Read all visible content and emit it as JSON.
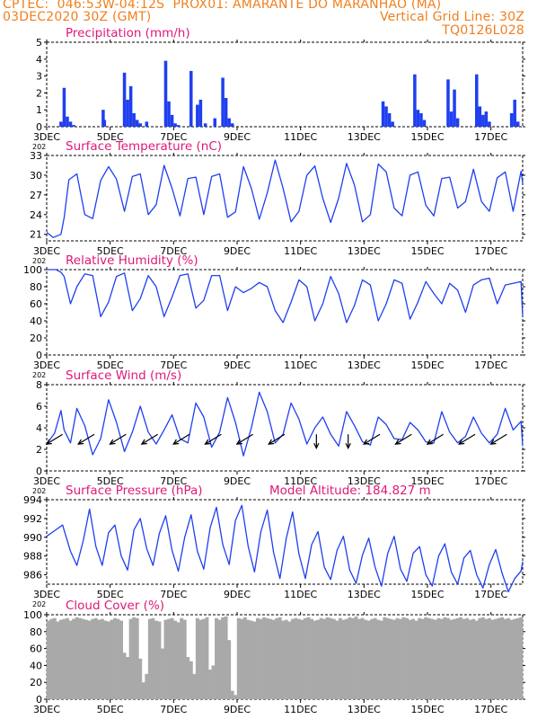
{
  "header": {
    "line1_left": "CPTEC:  046:53W-04:12S  PROX01: AMARANTE DO MARANHAO (MA)",
    "line2_left": "03DEC2020 30Z (GMT)",
    "line2_right": "Vertical Grid Line: 30Z",
    "line3_right": "TQ0126L028"
  },
  "colors": {
    "header": "#f07f1e",
    "title": "#e0187a",
    "line": "#1f3ff0",
    "bar": "#1f3ff0",
    "cloud": "#a9a9a9",
    "arrow": "#000000"
  },
  "x_axis": {
    "tick_labels": [
      "3DEC",
      "5DEC",
      "7DEC",
      "9DEC",
      "11DEC",
      "13DEC",
      "15DEC",
      "17DEC"
    ],
    "tick_days": [
      0,
      2,
      4,
      6,
      8,
      10,
      12,
      14
    ],
    "range_days": [
      0,
      15.0
    ],
    "stray_label": "202"
  },
  "chart_data": [
    {
      "type": "bar",
      "title": "Precipitation (mm/h)",
      "ylim": [
        0,
        5
      ],
      "yticks": [
        0,
        1,
        2,
        3,
        4,
        5
      ],
      "x": [
        0.45,
        0.55,
        0.65,
        0.75,
        0.85,
        1.78,
        1.82,
        2.45,
        2.55,
        2.65,
        2.75,
        2.85,
        2.95,
        3.15,
        3.75,
        3.85,
        3.95,
        4.05,
        4.15,
        4.55,
        4.75,
        4.85,
        5.0,
        5.3,
        5.55,
        5.65,
        5.75,
        5.85,
        10.6,
        10.7,
        10.8,
        10.9,
        11.6,
        11.7,
        11.8,
        11.9,
        12.65,
        12.75,
        12.85,
        12.95,
        13.55,
        13.65,
        13.75,
        13.85,
        13.95,
        14.65,
        14.75,
        14.85
      ],
      "values": [
        0.3,
        2.3,
        0.6,
        0.3,
        0.1,
        1.0,
        0.4,
        3.2,
        1.6,
        2.4,
        0.8,
        0.4,
        0.2,
        0.3,
        3.9,
        1.5,
        0.7,
        0.2,
        0.1,
        3.3,
        1.3,
        1.6,
        0.2,
        0.5,
        2.9,
        1.7,
        0.5,
        0.2,
        1.5,
        1.2,
        0.8,
        0.3,
        3.1,
        1.0,
        0.8,
        0.4,
        2.8,
        0.9,
        2.2,
        0.5,
        3.1,
        1.2,
        0.7,
        0.9,
        0.3,
        0.8,
        1.6,
        0.3
      ]
    },
    {
      "type": "line",
      "title": "Surface Temperature (nC)",
      "ylim": [
        20,
        33
      ],
      "yticks": [
        21,
        24,
        27,
        30,
        33
      ],
      "x": [
        0,
        0.2,
        0.45,
        0.55,
        0.7,
        0.95,
        1.2,
        1.45,
        1.7,
        1.95,
        2.2,
        2.45,
        2.7,
        2.95,
        3.2,
        3.45,
        3.7,
        3.95,
        4.2,
        4.45,
        4.7,
        4.95,
        5.2,
        5.45,
        5.7,
        5.95,
        6.2,
        6.45,
        6.7,
        6.95,
        7.2,
        7.45,
        7.7,
        7.95,
        8.2,
        8.45,
        8.7,
        8.95,
        9.2,
        9.45,
        9.7,
        9.95,
        10.2,
        10.45,
        10.7,
        10.95,
        11.2,
        11.45,
        11.7,
        11.95,
        12.2,
        12.45,
        12.7,
        12.95,
        13.2,
        13.45,
        13.7,
        13.95,
        14.2,
        14.45,
        14.7,
        14.95,
        15.0
      ],
      "values": [
        21.3,
        20.5,
        21.0,
        23.5,
        29.3,
        30.2,
        24.0,
        23.4,
        29.2,
        31.3,
        29.4,
        24.5,
        29.8,
        30.2,
        24.0,
        25.5,
        31.5,
        28.0,
        23.8,
        29.5,
        29.7,
        24.0,
        29.8,
        30.2,
        23.6,
        24.4,
        31.3,
        28.0,
        23.3,
        27.3,
        32.3,
        28.0,
        22.9,
        24.5,
        30.0,
        31.4,
        26.5,
        22.8,
        26.5,
        31.8,
        28.5,
        22.9,
        24.0,
        31.7,
        30.5,
        25.0,
        23.8,
        30.0,
        30.5,
        25.4,
        23.8,
        29.5,
        29.7,
        25.0,
        26.0,
        30.9,
        26.0,
        24.5,
        29.6,
        30.5,
        24.5,
        30.6,
        28.8
      ]
    },
    {
      "type": "line",
      "title": "Relative Humidity (%)",
      "ylim": [
        0,
        100
      ],
      "yticks": [
        0,
        20,
        40,
        60,
        80,
        100
      ],
      "x": [
        0,
        0.3,
        0.45,
        0.55,
        0.75,
        0.95,
        1.2,
        1.45,
        1.7,
        1.95,
        2.2,
        2.45,
        2.7,
        2.95,
        3.2,
        3.45,
        3.7,
        3.95,
        4.2,
        4.45,
        4.7,
        4.95,
        5.2,
        5.45,
        5.7,
        5.95,
        6.2,
        6.45,
        6.7,
        6.95,
        7.2,
        7.45,
        7.7,
        7.95,
        8.2,
        8.45,
        8.7,
        8.95,
        9.2,
        9.45,
        9.7,
        9.95,
        10.2,
        10.45,
        10.7,
        10.95,
        11.2,
        11.45,
        11.7,
        11.95,
        12.2,
        12.45,
        12.7,
        12.95,
        13.2,
        13.45,
        13.7,
        13.95,
        14.2,
        14.45,
        14.7,
        14.95,
        15.0
      ],
      "values": [
        100,
        100,
        97,
        92,
        60,
        80,
        95,
        93,
        45,
        62,
        92,
        96,
        52,
        66,
        93,
        80,
        45,
        68,
        93,
        95,
        55,
        64,
        93,
        93,
        52,
        80,
        73,
        78,
        85,
        80,
        52,
        38,
        62,
        88,
        80,
        40,
        60,
        92,
        72,
        38,
        58,
        88,
        82,
        40,
        60,
        88,
        84,
        42,
        62,
        86,
        72,
        60,
        84,
        76,
        50,
        82,
        88,
        90,
        60,
        82,
        84,
        86,
        45
      ]
    },
    {
      "type": "line",
      "title": "Surface Wind (m/s)",
      "ylim": [
        0,
        8
      ],
      "yticks": [
        0,
        2,
        4,
        6,
        8
      ],
      "x": [
        0,
        0.25,
        0.45,
        0.55,
        0.75,
        0.95,
        1.2,
        1.45,
        1.7,
        1.95,
        2.2,
        2.45,
        2.7,
        2.95,
        3.2,
        3.45,
        3.7,
        3.95,
        4.2,
        4.45,
        4.7,
        4.95,
        5.2,
        5.45,
        5.7,
        5.95,
        6.2,
        6.45,
        6.7,
        6.95,
        7.2,
        7.45,
        7.7,
        7.95,
        8.2,
        8.45,
        8.7,
        8.95,
        9.2,
        9.45,
        9.7,
        9.95,
        10.2,
        10.45,
        10.7,
        10.95,
        11.2,
        11.45,
        11.7,
        11.95,
        12.2,
        12.45,
        12.7,
        12.95,
        13.2,
        13.45,
        13.7,
        13.95,
        14.2,
        14.45,
        14.7,
        14.95,
        15.0
      ],
      "values": [
        2.5,
        3.5,
        5.6,
        3.8,
        2.6,
        5.8,
        4.2,
        1.5,
        3.0,
        6.6,
        4.5,
        1.8,
        3.6,
        6.0,
        3.6,
        2.5,
        3.8,
        5.2,
        3.0,
        2.6,
        6.3,
        5.0,
        2.2,
        3.6,
        6.8,
        4.5,
        1.4,
        4.0,
        7.3,
        5.5,
        2.6,
        3.4,
        6.3,
        4.8,
        2.5,
        4.0,
        5.0,
        3.4,
        2.3,
        5.5,
        4.2,
        2.7,
        2.4,
        5.0,
        4.3,
        3.0,
        2.9,
        4.5,
        3.8,
        2.7,
        2.6,
        5.5,
        3.6,
        2.6,
        3.2,
        5.0,
        3.5,
        2.6,
        3.4,
        5.8,
        3.8,
        4.6,
        2.3
      ],
      "vectors": {
        "x": [
          0.5,
          1.5,
          2.5,
          3.5,
          4.5,
          5.5,
          6.5,
          7.5,
          8.5,
          9.5,
          10.5,
          11.5,
          12.5,
          13.5,
          14.5
        ],
        "u": [
          -1,
          -1,
          -1,
          -1,
          -1,
          -1,
          -1,
          -1,
          0,
          0,
          -1,
          -1,
          -1,
          -1,
          -1
        ],
        "v": [
          -1,
          -1,
          -1,
          -1,
          -1,
          -1,
          -1,
          -1,
          -1,
          -1,
          -1,
          -1,
          -1,
          -1,
          -1
        ]
      }
    },
    {
      "type": "line",
      "title": "Surface Pressure (hPa)",
      "subtitle": "Model Altitude: 184.827 m",
      "ylim": [
        985,
        994
      ],
      "yticks": [
        986,
        988,
        990,
        992,
        994
      ],
      "x": [
        0,
        0.25,
        0.5,
        0.75,
        0.95,
        1.15,
        1.35,
        1.55,
        1.75,
        1.95,
        2.15,
        2.35,
        2.55,
        2.75,
        2.95,
        3.15,
        3.35,
        3.55,
        3.75,
        3.95,
        4.15,
        4.35,
        4.55,
        4.75,
        4.95,
        5.15,
        5.35,
        5.55,
        5.75,
        5.95,
        6.15,
        6.35,
        6.55,
        6.75,
        6.95,
        7.15,
        7.35,
        7.55,
        7.75,
        7.95,
        8.15,
        8.35,
        8.55,
        8.75,
        8.95,
        9.15,
        9.35,
        9.55,
        9.75,
        9.95,
        10.15,
        10.35,
        10.55,
        10.75,
        10.95,
        11.15,
        11.35,
        11.55,
        11.75,
        11.95,
        12.15,
        12.35,
        12.55,
        12.75,
        12.95,
        13.15,
        13.35,
        13.55,
        13.75,
        13.95,
        14.15,
        14.35,
        14.55,
        14.75,
        14.95,
        15.0
      ],
      "values": [
        990.1,
        990.7,
        991.3,
        988.5,
        987.0,
        989.6,
        993.0,
        989.0,
        987.0,
        990.5,
        991.3,
        988.0,
        986.5,
        990.8,
        992.0,
        988.8,
        987.0,
        990.4,
        992.3,
        988.6,
        986.4,
        990.0,
        992.4,
        988.5,
        986.6,
        991.0,
        993.2,
        989.2,
        987.1,
        991.8,
        993.4,
        989.0,
        986.3,
        990.6,
        992.9,
        988.4,
        985.6,
        989.9,
        992.7,
        988.2,
        985.6,
        989.2,
        990.6,
        986.8,
        985.5,
        988.6,
        990.1,
        986.5,
        985.1,
        988.1,
        989.9,
        986.8,
        984.8,
        988.3,
        990.1,
        986.6,
        985.3,
        988.3,
        989.0,
        986.0,
        984.8,
        988.0,
        989.3,
        986.3,
        985.0,
        987.8,
        988.6,
        986.0,
        984.6,
        987.1,
        988.7,
        986.2,
        984.2,
        985.6,
        986.4,
        987.4
      ]
    },
    {
      "type": "bar",
      "title": "Cloud Cover (%)",
      "ylim": [
        0,
        100
      ],
      "yticks": [
        0,
        20,
        40,
        60,
        80,
        100
      ],
      "x": [
        0.05,
        0.15,
        0.25,
        0.35,
        0.45,
        0.55,
        0.65,
        0.75,
        0.85,
        0.95,
        1.05,
        1.15,
        1.25,
        1.35,
        1.45,
        1.55,
        1.65,
        1.75,
        1.85,
        1.95,
        2.05,
        2.15,
        2.25,
        2.35,
        2.45,
        2.55,
        2.65,
        2.75,
        2.85,
        2.95,
        3.05,
        3.15,
        3.25,
        3.35,
        3.45,
        3.55,
        3.65,
        3.75,
        3.85,
        3.95,
        4.05,
        4.15,
        4.25,
        4.35,
        4.45,
        4.55,
        4.65,
        4.75,
        4.85,
        4.95,
        5.05,
        5.15,
        5.25,
        5.35,
        5.45,
        5.55,
        5.65,
        5.75,
        5.85,
        5.95,
        6.05,
        6.15,
        6.25,
        6.35,
        6.45,
        6.55,
        6.65,
        6.75,
        6.85,
        6.95,
        7.05,
        7.15,
        7.25,
        7.35,
        7.45,
        7.55,
        7.65,
        7.75,
        7.85,
        7.95,
        8.05,
        8.15,
        8.25,
        8.35,
        8.45,
        8.55,
        8.65,
        8.75,
        8.85,
        8.95,
        9.05,
        9.15,
        9.25,
        9.35,
        9.45,
        9.55,
        9.65,
        9.75,
        9.85,
        9.95,
        10.05,
        10.15,
        10.25,
        10.35,
        10.45,
        10.55,
        10.65,
        10.75,
        10.85,
        10.95,
        11.05,
        11.15,
        11.25,
        11.35,
        11.45,
        11.55,
        11.65,
        11.75,
        11.85,
        11.95,
        12.05,
        12.15,
        12.25,
        12.35,
        12.45,
        12.55,
        12.65,
        12.75,
        12.85,
        12.95,
        13.05,
        13.15,
        13.25,
        13.35,
        13.45,
        13.55,
        13.65,
        13.75,
        13.85,
        13.95,
        14.05,
        14.15,
        14.25,
        14.35,
        14.45,
        14.55,
        14.65,
        14.75,
        14.85,
        14.95
      ],
      "values": [
        93,
        95,
        96,
        92,
        94,
        95,
        96,
        93,
        95,
        97,
        96,
        95,
        94,
        93,
        95,
        96,
        94,
        95,
        93,
        92,
        94,
        96,
        95,
        93,
        55,
        50,
        95,
        97,
        96,
        48,
        20,
        30,
        95,
        96,
        93,
        92,
        60,
        94,
        95,
        96,
        93,
        91,
        96,
        94,
        50,
        45,
        30,
        96,
        94,
        95,
        97,
        35,
        40,
        96,
        94,
        97,
        98,
        70,
        10,
        5,
        96,
        95,
        97,
        94,
        93,
        92,
        96,
        95,
        97,
        96,
        95,
        94,
        96,
        97,
        93,
        94,
        92,
        95,
        96,
        95,
        94,
        96,
        97,
        95,
        93,
        94,
        96,
        95,
        97,
        96,
        95,
        93,
        96,
        94,
        95,
        97,
        96,
        98,
        95,
        96,
        94,
        93,
        95,
        96,
        94,
        93,
        97,
        96,
        95,
        94,
        96,
        95,
        97,
        96,
        94,
        95,
        93,
        96,
        95,
        97,
        96,
        95,
        94,
        96,
        95,
        97,
        96,
        94,
        95,
        96,
        97,
        95,
        96,
        94,
        95,
        93,
        96,
        97,
        95,
        96,
        94,
        95,
        96,
        97,
        95,
        96,
        94,
        95,
        96,
        97
      ]
    }
  ]
}
